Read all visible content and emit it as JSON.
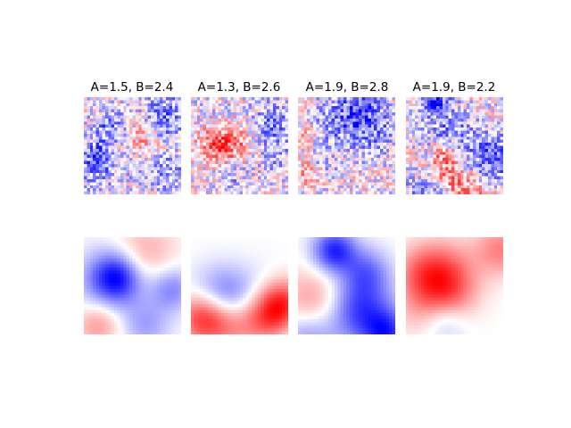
{
  "chart_data": {
    "type": "heatmap",
    "colormap": "bwr",
    "grid": false,
    "axes_visible": false,
    "layout": "2 rows x 4 columns",
    "rows": [
      "noisy",
      "smoothed"
    ],
    "panels": [
      {
        "title": "A=1.5, B=2.4",
        "noisy_seed": 11,
        "smooth_seed": 101
      },
      {
        "title": "A=1.3, B=2.6",
        "noisy_seed": 23,
        "smooth_seed": 203
      },
      {
        "title": "A=1.9, B=2.8",
        "noisy_seed": 37,
        "smooth_seed": 307
      },
      {
        "title": "A=1.9, B=2.2",
        "noisy_seed": 41,
        "smooth_seed": 409
      }
    ],
    "value_range": [
      -1,
      1
    ]
  }
}
